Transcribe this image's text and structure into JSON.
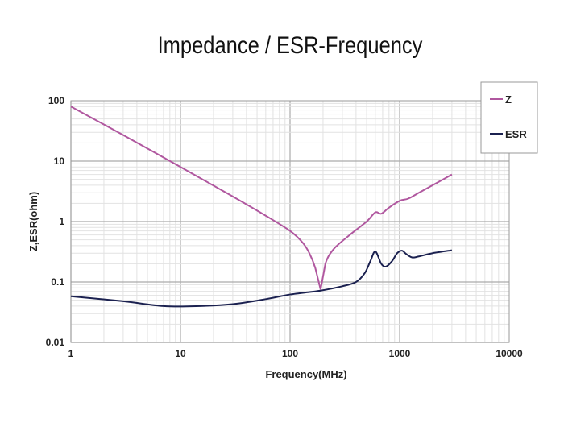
{
  "chart_data": {
    "type": "line",
    "title": "Impedance / ESR-Frequency",
    "xlabel": "Frequency(MHz)",
    "ylabel": "Z,ESR(ohm)",
    "xscale": "log",
    "yscale": "log",
    "xlim": [
      1,
      10000
    ],
    "ylim": [
      0.01,
      100
    ],
    "xticks": [
      "1",
      "10",
      "100",
      "1000",
      "10000"
    ],
    "yticks": [
      "100",
      "10",
      "1",
      "0.1",
      "0.01"
    ],
    "grid": true,
    "legend": "top-right",
    "colors": {
      "Z": "#b0579f",
      "ESR": "#1b2150"
    },
    "series": [
      {
        "name": "Z",
        "x": [
          1,
          3,
          10,
          30,
          60,
          100,
          130,
          150,
          170,
          190,
          210,
          250,
          350,
          500,
          600,
          680,
          800,
          1000,
          1200,
          1500,
          2000,
          3000
        ],
        "y": [
          80,
          27,
          8,
          2.6,
          1.25,
          0.7,
          0.45,
          0.3,
          0.17,
          0.075,
          0.2,
          0.35,
          0.6,
          1.0,
          1.42,
          1.35,
          1.7,
          2.2,
          2.4,
          3.0,
          4.0,
          6.0
        ]
      },
      {
        "name": "ESR",
        "x": [
          1,
          3,
          7,
          15,
          30,
          60,
          100,
          190,
          300,
          400,
          480,
          540,
          600,
          680,
          750,
          850,
          950,
          1050,
          1150,
          1300,
          1500,
          2000,
          3000
        ],
        "y": [
          0.058,
          0.048,
          0.04,
          0.04,
          0.043,
          0.052,
          0.062,
          0.072,
          0.085,
          0.1,
          0.14,
          0.22,
          0.32,
          0.2,
          0.18,
          0.22,
          0.3,
          0.33,
          0.29,
          0.255,
          0.265,
          0.3,
          0.335
        ]
      }
    ]
  }
}
